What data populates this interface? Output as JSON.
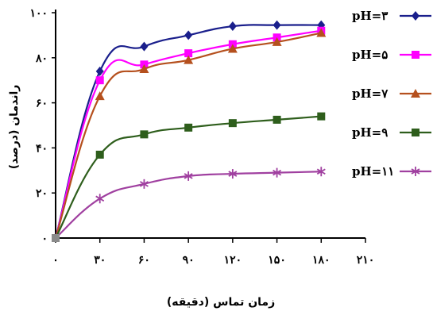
{
  "chart_data": {
    "type": "line",
    "xlabel": "زمان تماس (دقیقه)",
    "ylabel": "راندمان (درصد)",
    "x": [
      0,
      30,
      60,
      90,
      120,
      150,
      180
    ],
    "x_ticks": [
      {
        "value": 0,
        "label": "۰"
      },
      {
        "value": 30,
        "label": "۳۰"
      },
      {
        "value": 60,
        "label": "۶۰"
      },
      {
        "value": 90,
        "label": "۹۰"
      },
      {
        "value": 120,
        "label": "۱۲۰"
      },
      {
        "value": 150,
        "label": "۱۵۰"
      },
      {
        "value": 180,
        "label": "۱۸۰"
      },
      {
        "value": 210,
        "label": "۲۱۰"
      }
    ],
    "y_ticks": [
      {
        "value": 0,
        "label": "۰"
      },
      {
        "value": 20,
        "label": "۲۰"
      },
      {
        "value": 40,
        "label": "۴۰"
      },
      {
        "value": 60,
        "label": "۶۰"
      },
      {
        "value": 80,
        "label": "۸۰"
      },
      {
        "value": 100,
        "label": "۱۰۰"
      }
    ],
    "xlim": [
      0,
      210
    ],
    "ylim": [
      0,
      100
    ],
    "grid": false,
    "legend_position": "right",
    "series": [
      {
        "name": "pH=۳",
        "color": "#1a1f8c",
        "marker": "diamond",
        "values": [
          0,
          74,
          85,
          90,
          94,
          94.5,
          94.5
        ]
      },
      {
        "name": "pH=۵",
        "color": "#ff00ff",
        "marker": "square",
        "values": [
          0,
          70,
          77,
          82,
          86,
          89,
          92
        ]
      },
      {
        "name": "pH=۷",
        "color": "#b5501e",
        "marker": "triangle",
        "values": [
          0,
          63,
          75,
          79,
          84,
          87,
          91
        ]
      },
      {
        "name": "pH=۹",
        "color": "#2e5e1c",
        "marker": "square",
        "values": [
          0,
          37,
          46,
          49,
          51,
          52.5,
          54
        ]
      },
      {
        "name": "pH=۱۱",
        "color": "#a040a0",
        "marker": "star",
        "values": [
          0,
          17.5,
          24,
          27.5,
          28.5,
          29,
          29.5
        ]
      }
    ]
  }
}
